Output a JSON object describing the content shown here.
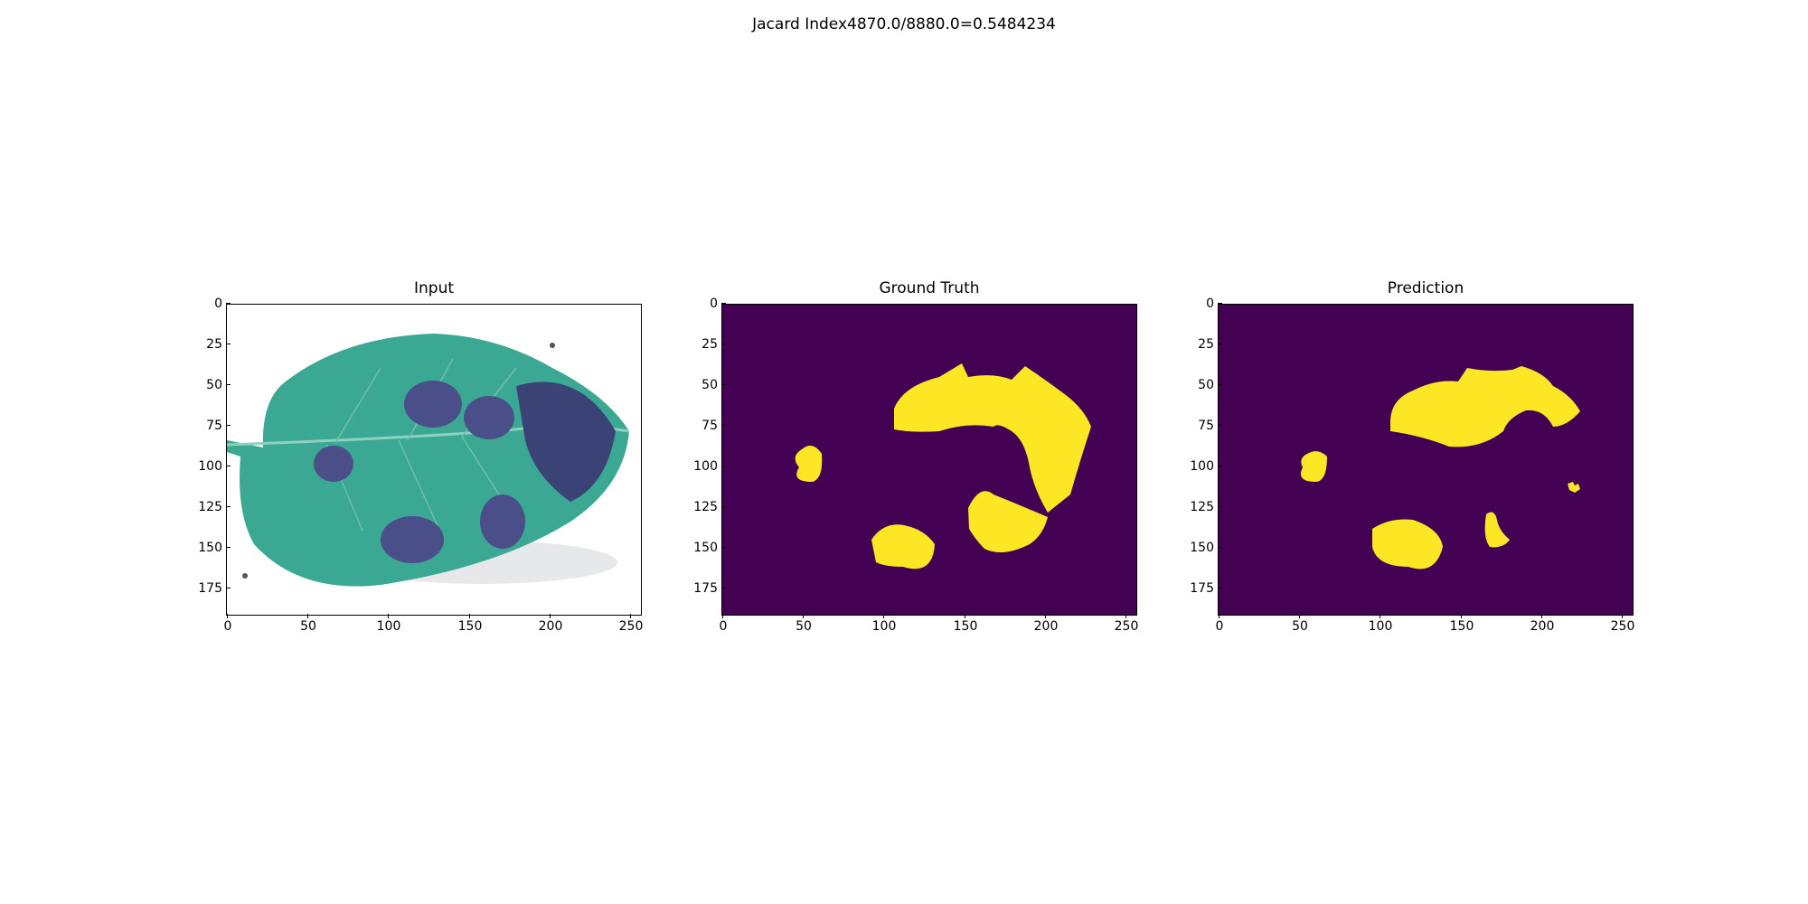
{
  "figure": {
    "title": "Jacard Index4870.0/8880.0=0.5484234"
  },
  "colors": {
    "background_mask": "#440154",
    "foreground_mask": "#fde725",
    "leaf": "#3aa893",
    "lesion": "#4a4f8a"
  },
  "panels": [
    {
      "title": "Input"
    },
    {
      "title": "Ground Truth"
    },
    {
      "title": "Prediction"
    }
  ],
  "axes": {
    "x_ticks": [
      "0",
      "50",
      "100",
      "150",
      "200",
      "250"
    ],
    "y_ticks": [
      "0",
      "25",
      "50",
      "75",
      "100",
      "125",
      "150",
      "175"
    ]
  }
}
